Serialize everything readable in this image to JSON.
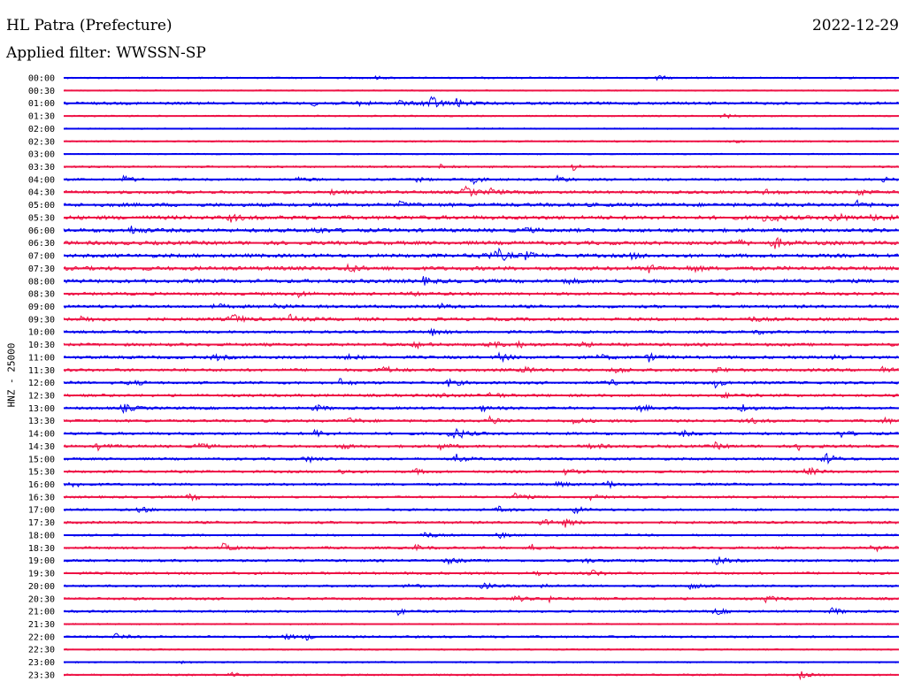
{
  "header": {
    "station": "HL Patra (Prefecture)",
    "date": "2022-12-29",
    "filter": "Applied filter: WWSSN-SP"
  },
  "chart_data": {
    "type": "line",
    "title": "HL Patra (Prefecture)",
    "ylabel": "HNZ - 25000",
    "xlabel": "",
    "colors": [
      "#0000ee",
      "#ee1144"
    ],
    "rows": [
      {
        "time": "00:00",
        "level": 0.15,
        "events": [
          [
            0.37,
            0.25
          ],
          [
            0.71,
            0.35
          ]
        ]
      },
      {
        "time": "00:30",
        "level": 0.05,
        "events": []
      },
      {
        "time": "01:00",
        "level": 0.35,
        "events": [
          [
            0.3,
            0.5
          ],
          [
            0.35,
            0.4
          ],
          [
            0.4,
            0.45
          ],
          [
            0.43,
            0.55
          ],
          [
            0.44,
            0.9
          ],
          [
            0.47,
            0.6
          ]
        ]
      },
      {
        "time": "01:30",
        "level": 0.1,
        "events": [
          [
            0.79,
            0.35
          ]
        ]
      },
      {
        "time": "02:00",
        "level": 0.08,
        "events": []
      },
      {
        "time": "02:30",
        "level": 0.12,
        "events": [
          [
            0.8,
            0.2
          ]
        ]
      },
      {
        "time": "03:00",
        "level": 0.06,
        "events": []
      },
      {
        "time": "03:30",
        "level": 0.2,
        "events": [
          [
            0.45,
            0.35
          ],
          [
            0.61,
            0.45
          ]
        ]
      },
      {
        "time": "04:00",
        "level": 0.25,
        "events": [
          [
            0.07,
            0.6
          ],
          [
            0.28,
            0.35
          ],
          [
            0.42,
            0.4
          ],
          [
            0.49,
            0.55
          ],
          [
            0.59,
            0.65
          ],
          [
            0.98,
            0.3
          ]
        ]
      },
      {
        "time": "04:30",
        "level": 0.4,
        "events": [
          [
            0.32,
            0.35
          ],
          [
            0.48,
            0.9
          ],
          [
            0.51,
            0.5
          ],
          [
            0.84,
            0.4
          ],
          [
            0.95,
            0.45
          ]
        ]
      },
      {
        "time": "05:00",
        "level": 0.55,
        "events": [
          [
            0.4,
            0.4
          ],
          [
            0.95,
            0.5
          ]
        ]
      },
      {
        "time": "05:30",
        "level": 0.6,
        "events": [
          [
            0.2,
            0.5
          ],
          [
            0.84,
            1.0
          ],
          [
            0.92,
            0.9
          ],
          [
            0.97,
            0.5
          ]
        ]
      },
      {
        "time": "06:00",
        "level": 0.55,
        "events": [
          [
            0.08,
            0.65
          ],
          [
            0.3,
            0.5
          ],
          [
            0.55,
            0.4
          ]
        ]
      },
      {
        "time": "06:30",
        "level": 0.55,
        "events": [
          [
            0.8,
            0.7
          ],
          [
            0.85,
            0.9
          ]
        ]
      },
      {
        "time": "07:00",
        "level": 0.55,
        "events": [
          [
            0.5,
            0.7
          ],
          [
            0.52,
            0.85
          ],
          [
            0.55,
            0.6
          ],
          [
            0.68,
            0.4
          ]
        ]
      },
      {
        "time": "07:30",
        "level": 0.6,
        "events": [
          [
            0.34,
            0.6
          ],
          [
            0.7,
            0.5
          ],
          [
            0.75,
            0.45
          ]
        ]
      },
      {
        "time": "08:00",
        "level": 0.55,
        "events": [
          [
            0.43,
            0.5
          ],
          [
            0.6,
            0.4
          ]
        ]
      },
      {
        "time": "08:30",
        "level": 0.4,
        "events": [
          [
            0.28,
            0.5
          ],
          [
            0.42,
            0.4
          ]
        ]
      },
      {
        "time": "09:00",
        "level": 0.4,
        "events": [
          [
            0.18,
            0.4
          ],
          [
            0.25,
            0.5
          ],
          [
            0.45,
            0.4
          ]
        ]
      },
      {
        "time": "09:30",
        "level": 0.45,
        "events": [
          [
            0.02,
            0.5
          ],
          [
            0.2,
            0.9
          ],
          [
            0.27,
            0.6
          ],
          [
            0.82,
            0.4
          ]
        ]
      },
      {
        "time": "10:00",
        "level": 0.35,
        "events": [
          [
            0.44,
            0.5
          ],
          [
            0.83,
            0.3
          ]
        ]
      },
      {
        "time": "10:30",
        "level": 0.4,
        "events": [
          [
            0.42,
            0.5
          ],
          [
            0.51,
            0.5
          ],
          [
            0.54,
            0.55
          ],
          [
            0.62,
            0.4
          ]
        ]
      },
      {
        "time": "11:00",
        "level": 0.4,
        "events": [
          [
            0.18,
            0.45
          ],
          [
            0.34,
            0.4
          ],
          [
            0.52,
            0.7
          ],
          [
            0.64,
            0.5
          ],
          [
            0.7,
            0.6
          ],
          [
            0.92,
            0.6
          ]
        ]
      },
      {
        "time": "11:30",
        "level": 0.4,
        "events": [
          [
            0.38,
            0.7
          ],
          [
            0.55,
            0.5
          ],
          [
            0.66,
            0.5
          ],
          [
            0.78,
            0.45
          ],
          [
            0.98,
            0.5
          ]
        ]
      },
      {
        "time": "12:00",
        "level": 0.35,
        "events": [
          [
            0.08,
            0.4
          ],
          [
            0.33,
            0.55
          ],
          [
            0.46,
            0.65
          ],
          [
            0.65,
            0.5
          ],
          [
            0.78,
            0.6
          ]
        ]
      },
      {
        "time": "12:30",
        "level": 0.35,
        "events": [
          [
            0.45,
            0.4
          ],
          [
            0.51,
            0.55
          ],
          [
            0.79,
            0.45
          ]
        ]
      },
      {
        "time": "13:00",
        "level": 0.35,
        "events": [
          [
            0.07,
            0.7
          ],
          [
            0.3,
            0.5
          ],
          [
            0.5,
            0.4
          ],
          [
            0.69,
            0.5
          ],
          [
            0.81,
            0.7
          ]
        ]
      },
      {
        "time": "13:30",
        "level": 0.35,
        "events": [
          [
            0.34,
            0.45
          ],
          [
            0.51,
            0.7
          ],
          [
            0.61,
            0.5
          ],
          [
            0.82,
            0.45
          ],
          [
            0.98,
            0.5
          ]
        ]
      },
      {
        "time": "14:00",
        "level": 0.35,
        "events": [
          [
            0.3,
            0.55
          ],
          [
            0.46,
            0.5
          ],
          [
            0.47,
            0.65
          ],
          [
            0.74,
            0.4
          ],
          [
            0.93,
            0.5
          ]
        ]
      },
      {
        "time": "14:30",
        "level": 0.35,
        "events": [
          [
            0.04,
            0.5
          ],
          [
            0.16,
            0.55
          ],
          [
            0.33,
            0.45
          ],
          [
            0.45,
            0.5
          ],
          [
            0.63,
            0.5
          ],
          [
            0.78,
            0.45
          ],
          [
            0.88,
            0.55
          ]
        ]
      },
      {
        "time": "15:00",
        "level": 0.3,
        "events": [
          [
            0.29,
            0.55
          ],
          [
            0.47,
            0.65
          ],
          [
            0.91,
            1.0
          ]
        ]
      },
      {
        "time": "15:30",
        "level": 0.3,
        "events": [
          [
            0.33,
            0.4
          ],
          [
            0.42,
            0.4
          ],
          [
            0.6,
            0.45
          ],
          [
            0.89,
            0.7
          ]
        ]
      },
      {
        "time": "16:00",
        "level": 0.3,
        "events": [
          [
            0.01,
            0.5
          ],
          [
            0.59,
            0.5
          ],
          [
            0.65,
            0.55
          ]
        ]
      },
      {
        "time": "16:30",
        "level": 0.25,
        "events": [
          [
            0.15,
            0.55
          ],
          [
            0.54,
            0.6
          ],
          [
            0.63,
            0.4
          ]
        ]
      },
      {
        "time": "17:00",
        "level": 0.25,
        "events": [
          [
            0.09,
            0.5
          ],
          [
            0.52,
            0.45
          ],
          [
            0.61,
            0.6
          ]
        ]
      },
      {
        "time": "17:30",
        "level": 0.3,
        "events": [
          [
            0.57,
            0.55
          ],
          [
            0.6,
            0.6
          ]
        ]
      },
      {
        "time": "18:00",
        "level": 0.2,
        "events": [
          [
            0.43,
            0.6
          ],
          [
            0.52,
            0.45
          ]
        ]
      },
      {
        "time": "18:30",
        "level": 0.3,
        "events": [
          [
            0.19,
            0.6
          ],
          [
            0.42,
            0.4
          ],
          [
            0.56,
            0.45
          ],
          [
            0.97,
            0.5
          ]
        ]
      },
      {
        "time": "19:00",
        "level": 0.3,
        "events": [
          [
            0.46,
            0.5
          ],
          [
            0.62,
            0.45
          ],
          [
            0.78,
            0.65
          ]
        ]
      },
      {
        "time": "19:30",
        "level": 0.3,
        "events": [
          [
            0.56,
            0.45
          ],
          [
            0.63,
            0.6
          ]
        ]
      },
      {
        "time": "20:00",
        "level": 0.25,
        "events": [
          [
            0.41,
            0.4
          ],
          [
            0.5,
            0.5
          ],
          [
            0.57,
            0.5
          ],
          [
            0.75,
            0.6
          ]
        ]
      },
      {
        "time": "20:30",
        "level": 0.3,
        "events": [
          [
            0.54,
            0.5
          ],
          [
            0.58,
            0.4
          ],
          [
            0.84,
            0.5
          ]
        ]
      },
      {
        "time": "21:00",
        "level": 0.25,
        "events": [
          [
            0.4,
            0.45
          ],
          [
            0.78,
            0.5
          ],
          [
            0.92,
            0.55
          ]
        ]
      },
      {
        "time": "21:30",
        "level": 0.1,
        "events": []
      },
      {
        "time": "22:00",
        "level": 0.25,
        "events": [
          [
            0.06,
            0.5
          ],
          [
            0.26,
            0.55
          ],
          [
            0.29,
            0.4
          ]
        ]
      },
      {
        "time": "22:30",
        "level": 0.1,
        "events": []
      },
      {
        "time": "23:00",
        "level": 0.1,
        "events": [
          [
            0.14,
            0.25
          ]
        ]
      },
      {
        "time": "23:30",
        "level": 0.15,
        "events": [
          [
            0.2,
            0.3
          ],
          [
            0.88,
            0.6
          ]
        ]
      }
    ]
  }
}
